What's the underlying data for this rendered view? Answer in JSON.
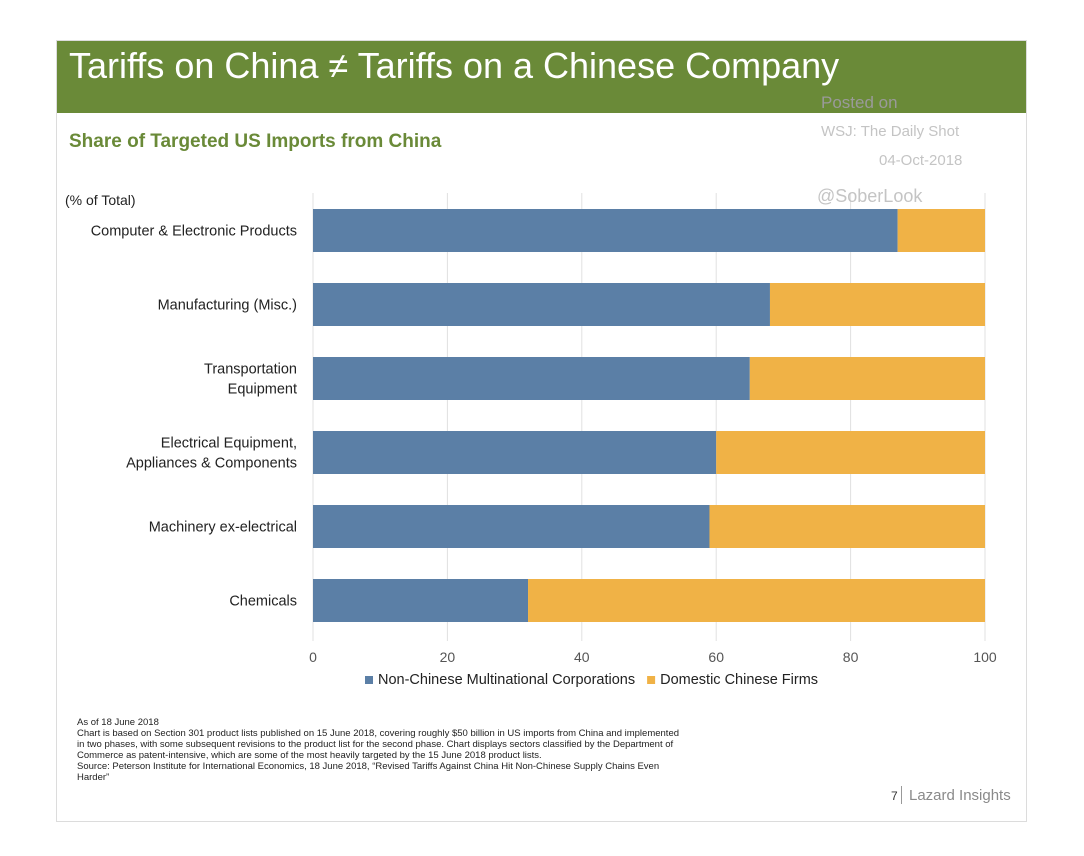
{
  "slide": {
    "title": "Tariffs on China ≠ Tariffs on a Chinese Company",
    "subtitle": "Share of Targeted US Imports from China",
    "unit_label": "(% of Total)"
  },
  "watermark": {
    "posted": "Posted on",
    "source": "WSJ: The Daily Shot",
    "date": "04-Oct-2018",
    "handle": "@SoberLook"
  },
  "chart_data": {
    "type": "bar",
    "orientation": "horizontal",
    "stacked": true,
    "title": "Share of Targeted US Imports from China",
    "ylabel": "(% of Total)",
    "xlabel": "",
    "xlim": [
      0,
      100
    ],
    "xticks": [
      0,
      20,
      40,
      60,
      80,
      100
    ],
    "grid": true,
    "legend_position": "bottom",
    "categories": [
      [
        "Computer & Electronic Products"
      ],
      [
        "Manufacturing (Misc.)"
      ],
      [
        "Transportation",
        "Equipment"
      ],
      [
        "Electrical Equipment,",
        "Appliances & Components"
      ],
      [
        "Machinery ex-electrical"
      ],
      [
        "Chemicals"
      ]
    ],
    "series": [
      {
        "name": "Non-Chinese Multinational Corporations",
        "color": "#5b7fa6",
        "values": [
          87,
          68,
          65,
          60,
          59,
          32
        ]
      },
      {
        "name": "Domestic Chinese Firms",
        "color": "#f0b246",
        "values": [
          13,
          32,
          35,
          40,
          41,
          68
        ]
      }
    ]
  },
  "footnotes": [
    "As of 18 June 2018",
    "Chart is based on Section 301 product lists published on 15 June 2018, covering roughly $50 billion in US imports from China and implemented",
    "in two phases, with some subsequent revisions to the product list for the second phase. Chart displays sectors classified by the Department of",
    "Commerce as patent-intensive, which are some of the most heavily targeted by the 15 June 2018 product lists.",
    "Source: Peterson Institute for International Economics, 18 June 2018, “Revised Tariffs Against China Hit Non-Chinese Supply Chains Even",
    "Harder”"
  ],
  "brand": {
    "page_number": "7",
    "name": "Lazard Insights"
  },
  "colors": {
    "header": "#6a8a38",
    "subtitle": "#6a8a38",
    "series_blue": "#5b7fa6",
    "series_orange": "#f0b246"
  }
}
